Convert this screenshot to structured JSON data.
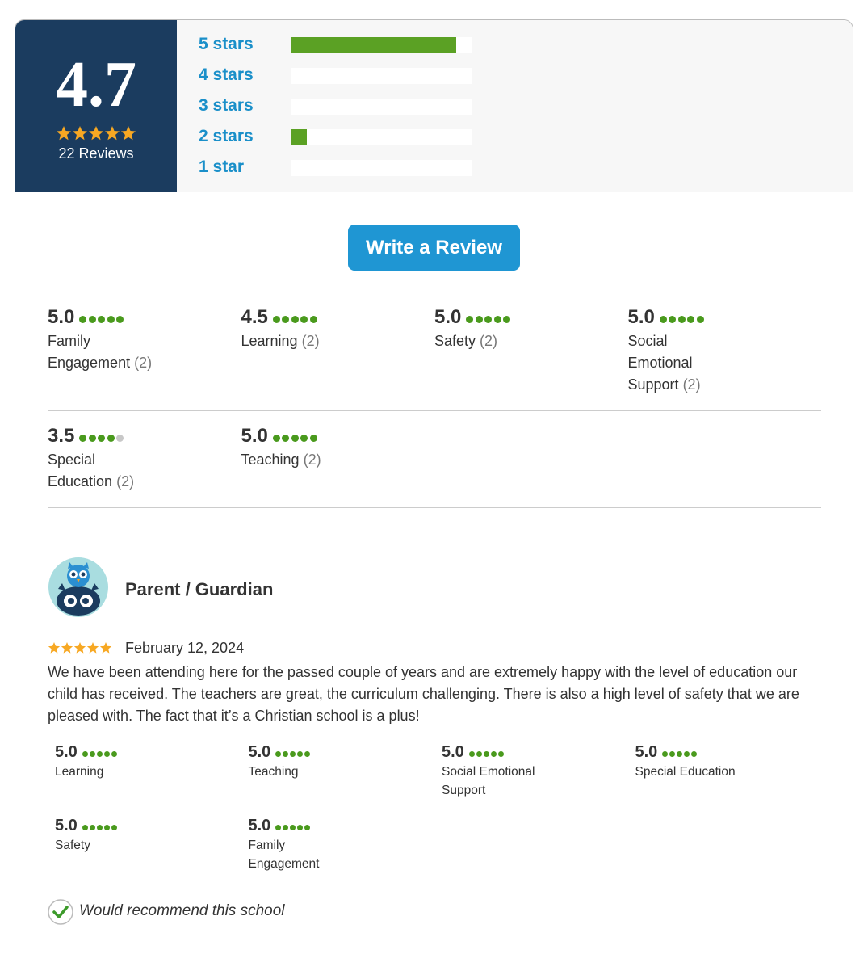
{
  "summary": {
    "rating": "4.7",
    "stars": 5,
    "reviews": "22 Reviews"
  },
  "distribution": [
    {
      "label": "5 stars",
      "count": 20
    },
    {
      "label": "4 stars",
      "count": 0
    },
    {
      "label": "3 stars",
      "count": 0
    },
    {
      "label": "2 stars",
      "count": 2
    },
    {
      "label": "1 star",
      "count": 0
    }
  ],
  "button": "Write a Review",
  "categories": [
    {
      "score": "5.0",
      "label": "Family Engagement",
      "count": "(2)"
    },
    {
      "score": "4.5",
      "label": "Learning",
      "count": "(2)"
    },
    {
      "score": "5.0",
      "label": "Safety",
      "count": "(2)"
    },
    {
      "score": "5.0",
      "label": "Social Emotional Support",
      "count": "(2)"
    },
    {
      "score": "3.5",
      "label": "Special Education",
      "count": "(2)"
    },
    {
      "score": "5.0",
      "label": "Teaching",
      "count": "(2)"
    }
  ],
  "review": {
    "author": "Parent / Guardian",
    "stars": 5,
    "date": "February 12, 2024",
    "text": "We have been attending here for the passed couple of years and are extremely happy with the level of education our child has received. The teachers are great, the curriculum challenging. There is also a high level of safety that we are pleased with. The fact that it’s a Christian school is a plus!",
    "ratings": [
      {
        "score": "5.0",
        "label": "Learning"
      },
      {
        "score": "5.0",
        "label": "Teaching"
      },
      {
        "score": "5.0",
        "label": "Social Emotional Support"
      },
      {
        "score": "5.0",
        "label": "Special Education"
      },
      {
        "score": "5.0",
        "label": "Safety"
      },
      {
        "score": "5.0",
        "label": "Family Engagement"
      }
    ],
    "recommend": "Would recommend this school"
  }
}
